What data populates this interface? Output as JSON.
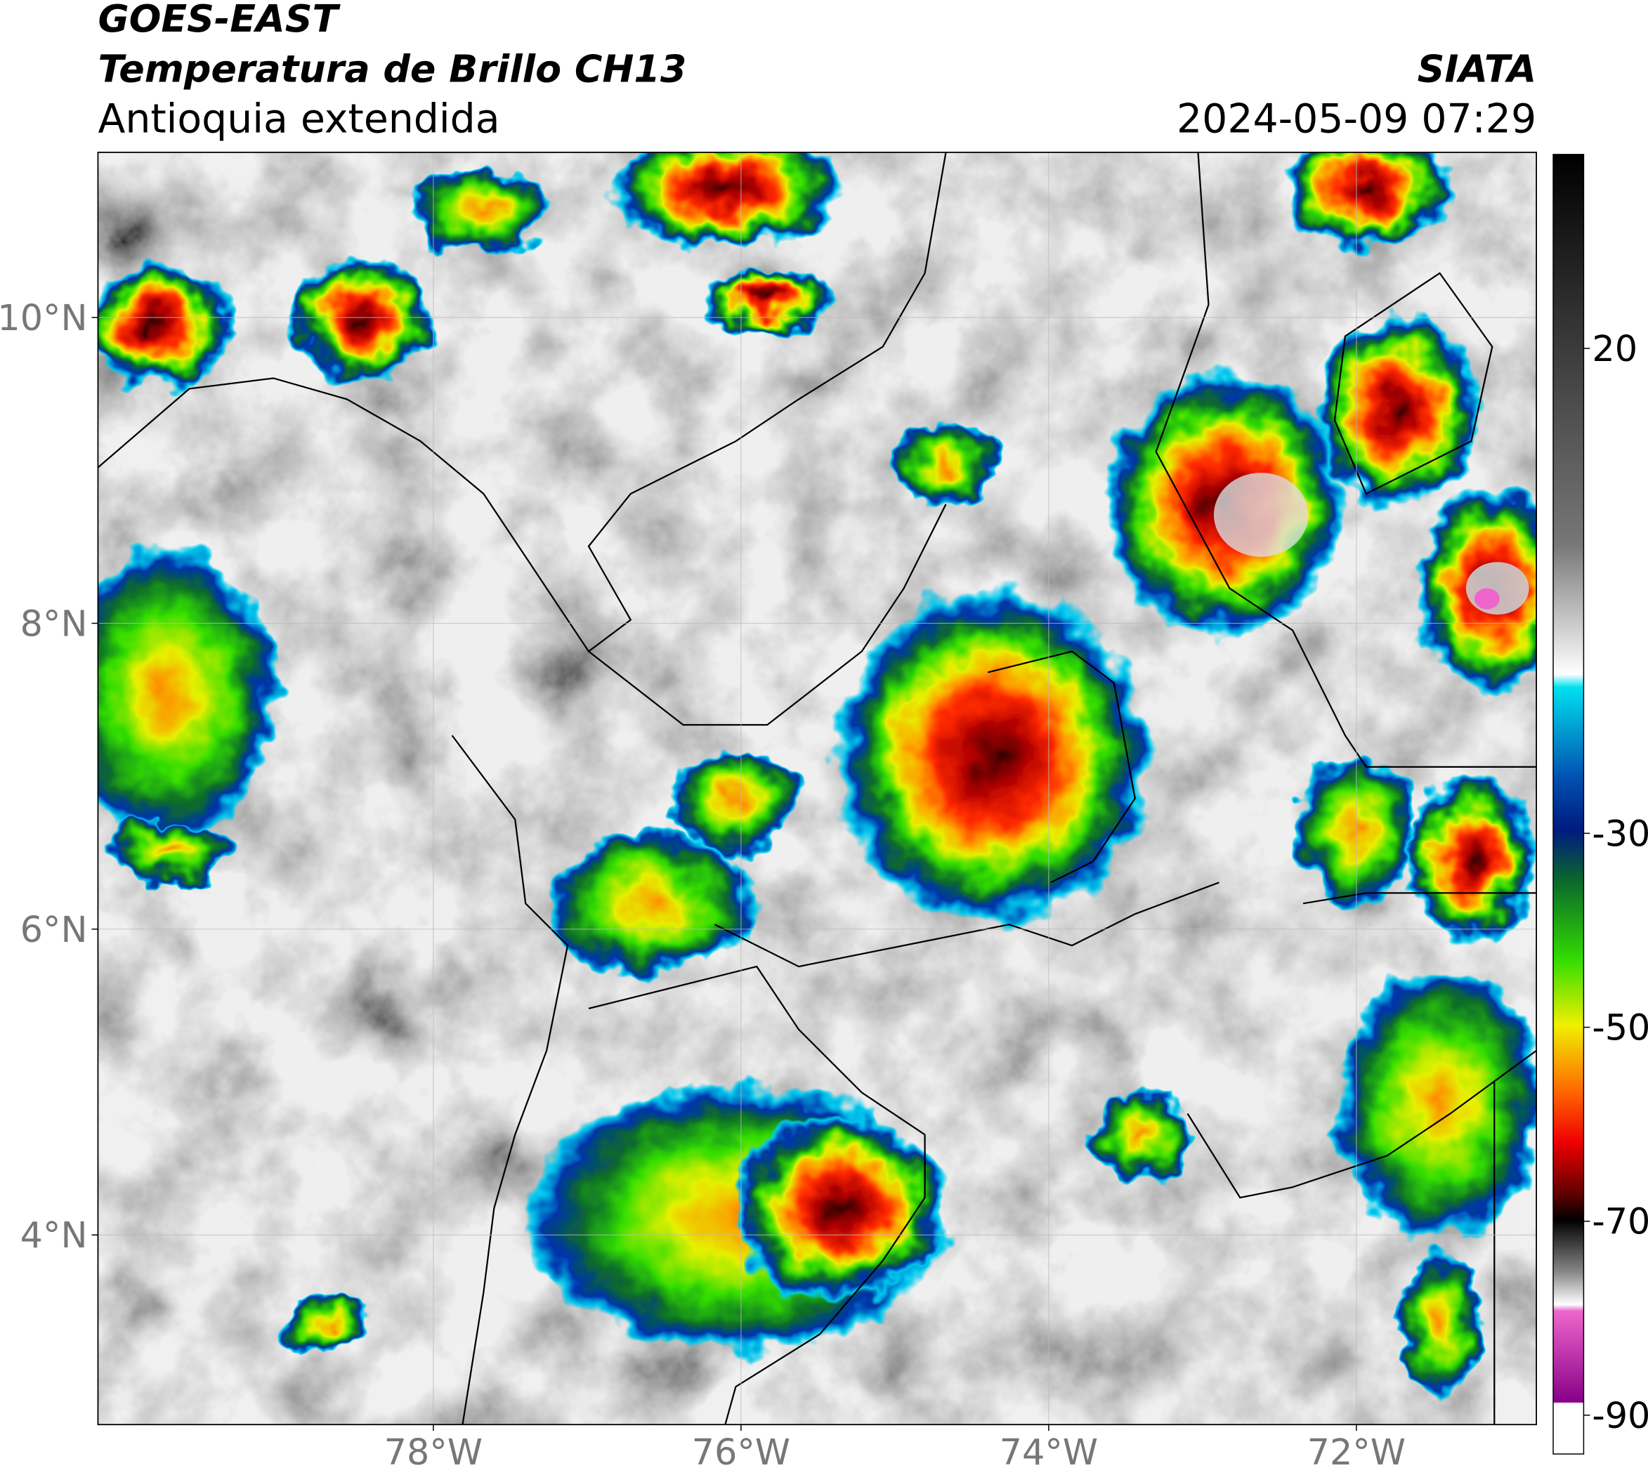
{
  "header": {
    "title": "GOES-EAST",
    "subtitle": "Temperatura de Brillo CH13",
    "region": "Antioquia extendida",
    "source": "SIATA",
    "datetime": "2024-05-09 07:29"
  },
  "map": {
    "lon_lim": [
      -80.18,
      -70.83
    ],
    "lat_lim": [
      2.76,
      11.08
    ],
    "lon_ticks": [
      {
        "value": -78,
        "label": "78°W"
      },
      {
        "value": -76,
        "label": "76°W"
      },
      {
        "value": -74,
        "label": "74°W"
      },
      {
        "value": -72,
        "label": "72°W"
      }
    ],
    "lat_ticks": [
      {
        "value": 4,
        "label": "4°N"
      },
      {
        "value": 6,
        "label": "6°N"
      },
      {
        "value": 8,
        "label": "8°N"
      },
      {
        "value": 10,
        "label": "10°N"
      }
    ],
    "grid": true
  },
  "colorbar": {
    "lim": [
      -94,
      40
    ],
    "ticks": [
      20,
      -30,
      -50,
      -70,
      -90
    ]
  }
}
